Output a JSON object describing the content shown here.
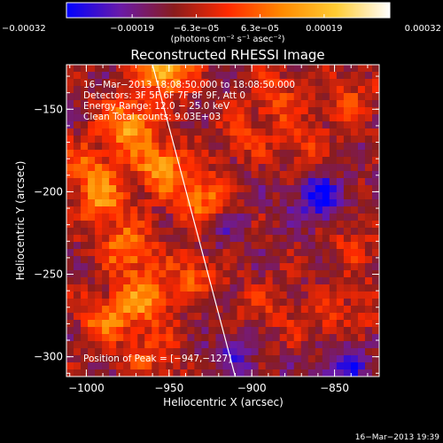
{
  "chart_data": {
    "type": "heatmap",
    "title": "Reconstructed RHESSI Image",
    "xlabel": "Heliocentric X (arcsec)",
    "ylabel": "Heliocentric Y (arcsec)",
    "xlim": [
      -1012,
      -823
    ],
    "ylim": [
      -312,
      -123
    ],
    "x_ticks": [
      -1000,
      -950,
      -900,
      -850
    ],
    "y_ticks": [
      -300,
      -250,
      -200,
      -150
    ],
    "x_tick_labels": [
      "−1000",
      "−950",
      "−900",
      "−850"
    ],
    "y_tick_labels": [
      "−300",
      "−250",
      "−200",
      "−150"
    ],
    "colorbar": {
      "min": -0.00032,
      "max": 0.00032,
      "tick_values": [
        -0.00032,
        -0.00019,
        -6.3e-05,
        6.3e-05,
        0.00019,
        0.00032
      ],
      "tick_labels": [
        "−0.00032",
        "−0.00019",
        "−6.3e−05",
        "6.3e−05",
        "0.00019",
        "0.00032"
      ],
      "units_label": "(photons cm⁻² s⁻¹ asec⁻²)",
      "colors": [
        "#0000ff",
        "#6a1aa8",
        "#8a1c1c",
        "#ff2a00",
        "#ff8a00",
        "#ffcc33",
        "#ffffff"
      ]
    },
    "limb_line": [
      [
        -960,
        -123
      ],
      [
        -910,
        -312
      ]
    ],
    "annotations": [
      "16−Mar−2013 18:08:50.000 to 18:08:50.000",
      "Detectors: 3F 5F 6F 7F 8F 9F, Att 0",
      "Energy Range: 12.0 − 25.0 keV",
      "Clean    Total counts: 9.03E+03",
      "Position of Peak = [−947,−127]"
    ],
    "emission_sources": [
      {
        "x": -952,
        "y": -125,
        "value": 0.00032
      },
      {
        "x": -975,
        "y": -160,
        "value": 0.00026
      },
      {
        "x": -955,
        "y": -185,
        "value": 0.00024
      },
      {
        "x": -990,
        "y": -205,
        "value": 0.0002
      },
      {
        "x": -930,
        "y": -205,
        "value": 0.00022
      },
      {
        "x": -975,
        "y": -235,
        "value": 0.0002
      },
      {
        "x": -1000,
        "y": -185,
        "value": 0.00014
      },
      {
        "x": -965,
        "y": -265,
        "value": 0.00021
      },
      {
        "x": -988,
        "y": -278,
        "value": 0.00018
      },
      {
        "x": -935,
        "y": -250,
        "value": 0.00014
      },
      {
        "x": -960,
        "y": -300,
        "value": 0.00012
      },
      {
        "x": -885,
        "y": -140,
        "value": 0.00012
      },
      {
        "x": -840,
        "y": -145,
        "value": 0.00011
      },
      {
        "x": -870,
        "y": -170,
        "value": 0.0001
      },
      {
        "x": -905,
        "y": -165,
        "value": 0.0001
      },
      {
        "x": -840,
        "y": -230,
        "value": 9e-05
      },
      {
        "x": -895,
        "y": -270,
        "value": 8e-05
      },
      {
        "x": -860,
        "y": -280,
        "value": 9e-05
      },
      {
        "x": -835,
        "y": -270,
        "value": 8e-05
      }
    ],
    "negative_regions": [
      {
        "x": -860,
        "y": -205,
        "value": -0.00018
      },
      {
        "x": -845,
        "y": -305,
        "value": -0.00015
      },
      {
        "x": -920,
        "y": -220,
        "value": -0.0001
      },
      {
        "x": -910,
        "y": -300,
        "value": -0.0001
      }
    ]
  },
  "footer": {
    "timestamp": "16−Mar−2013 19:39"
  }
}
